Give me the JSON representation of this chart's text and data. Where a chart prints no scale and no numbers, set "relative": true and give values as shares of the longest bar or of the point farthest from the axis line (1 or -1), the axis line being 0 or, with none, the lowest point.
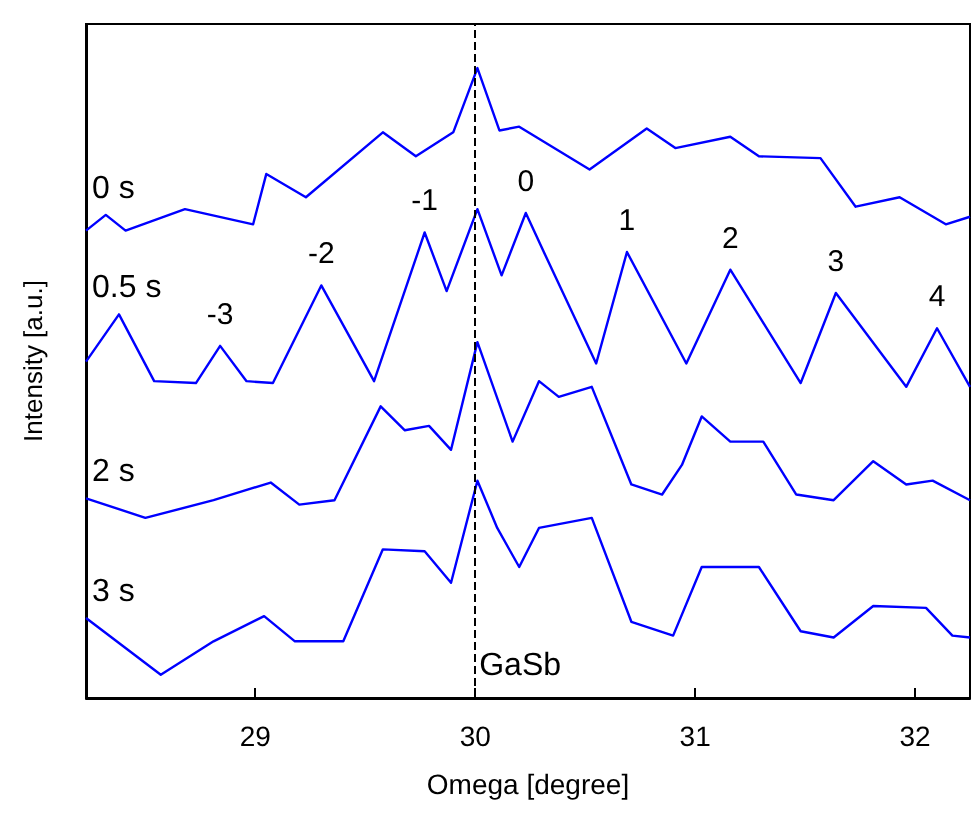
{
  "chart_data": {
    "type": "line",
    "relative": true,
    "xlabel": "Omega [degree]",
    "ylabel": "Intensity [a.u.]",
    "xlim": [
      28.23,
      32.25
    ],
    "xticks": [
      29,
      30,
      31,
      32
    ],
    "tick_labels": "x",
    "grid": false,
    "legend": false,
    "marker": "none",
    "line_style": "solid",
    "series": [
      {
        "name": "0 s",
        "color": "#0000ff",
        "x": [
          28.23,
          28.32,
          28.41,
          28.68,
          28.99,
          29.05,
          29.23,
          29.58,
          29.73,
          29.9,
          30.01,
          30.11,
          30.2,
          30.52,
          30.78,
          30.91,
          31.16,
          31.29,
          31.57,
          31.73,
          31.93,
          32.14,
          32.25
        ],
        "values": [
          0.742,
          0.767,
          0.742,
          0.776,
          0.752,
          0.832,
          0.795,
          0.898,
          0.86,
          0.898,
          1.0,
          0.901,
          0.907,
          0.839,
          0.904,
          0.873,
          0.891,
          0.86,
          0.857,
          0.78,
          0.795,
          0.752,
          0.764
        ]
      },
      {
        "name": "0.5 s",
        "color": "#0000ff",
        "x": [
          28.23,
          28.38,
          28.54,
          28.73,
          28.84,
          28.96,
          29.08,
          29.3,
          29.54,
          29.77,
          29.87,
          30.01,
          30.12,
          30.23,
          30.32,
          30.55,
          30.69,
          30.96,
          31.16,
          31.48,
          31.64,
          31.96,
          32.1,
          32.25
        ],
        "values": [
          0.534,
          0.609,
          0.503,
          0.5,
          0.559,
          0.503,
          0.5,
          0.655,
          0.503,
          0.739,
          0.646,
          0.776,
          0.671,
          0.77,
          0.702,
          0.531,
          0.708,
          0.531,
          0.68,
          0.5,
          0.643,
          0.494,
          0.587,
          0.494
        ]
      },
      {
        "name": "2 s",
        "color": "#0000ff",
        "x": [
          28.23,
          28.5,
          28.81,
          29.07,
          29.2,
          29.36,
          29.57,
          29.68,
          29.79,
          29.89,
          30.01,
          30.17,
          30.29,
          30.38,
          30.53,
          30.71,
          30.85,
          30.94,
          31.03,
          31.16,
          31.31,
          31.46,
          31.63,
          31.81,
          31.96,
          32.08,
          32.25
        ],
        "values": [
          0.317,
          0.286,
          0.314,
          0.342,
          0.307,
          0.314,
          0.463,
          0.425,
          0.432,
          0.394,
          0.565,
          0.407,
          0.503,
          0.478,
          0.494,
          0.339,
          0.323,
          0.37,
          0.447,
          0.407,
          0.407,
          0.323,
          0.314,
          0.376,
          0.339,
          0.345,
          0.314
        ]
      },
      {
        "name": "3 s",
        "color": "#0000ff",
        "x": [
          28.23,
          28.57,
          28.81,
          29.04,
          29.18,
          29.4,
          29.58,
          29.77,
          29.89,
          30.01,
          30.1,
          30.2,
          30.29,
          30.53,
          30.71,
          30.9,
          31.03,
          31.29,
          31.48,
          31.63,
          31.81,
          32.05,
          32.17,
          32.25
        ],
        "values": [
          0.127,
          0.037,
          0.09,
          0.13,
          0.09,
          0.09,
          0.236,
          0.233,
          0.183,
          0.345,
          0.27,
          0.208,
          0.27,
          0.286,
          0.121,
          0.099,
          0.208,
          0.208,
          0.106,
          0.096,
          0.146,
          0.143,
          0.099,
          0.096
        ]
      }
    ],
    "annotations": [
      {
        "text": "-3",
        "x": 28.84,
        "y": 0.559
      },
      {
        "text": "-2",
        "x": 29.3,
        "y": 0.655
      },
      {
        "text": "-1",
        "x": 29.77,
        "y": 0.739
      },
      {
        "text": "0",
        "x": 30.23,
        "y": 0.77
      },
      {
        "text": "1",
        "x": 30.69,
        "y": 0.708
      },
      {
        "text": "2",
        "x": 31.16,
        "y": 0.68
      },
      {
        "text": "3",
        "x": 31.64,
        "y": 0.643
      },
      {
        "text": "4",
        "x": 32.1,
        "y": 0.587
      }
    ],
    "ref_lines": [
      {
        "axis": "x",
        "value": 30,
        "label": "GaSb",
        "color": "#000000",
        "line_style": "dashed"
      }
    ]
  }
}
